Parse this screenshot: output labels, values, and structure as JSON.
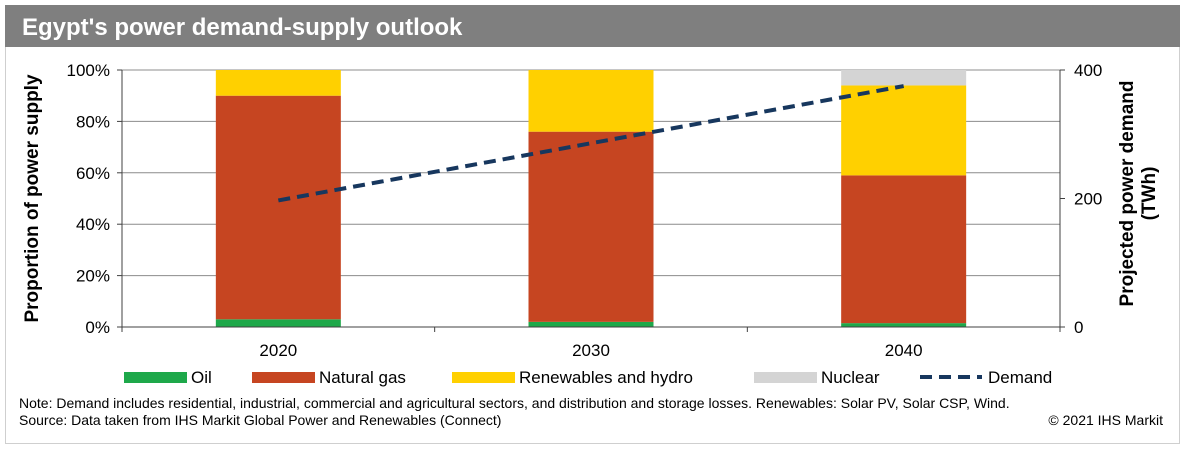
{
  "title": "Egypt's power demand-supply outlook",
  "colors": {
    "oil": "#1ea84a",
    "natural_gas": "#c64521",
    "renewables": "#ffd000",
    "nuclear": "#d4d4d4",
    "demand": "#17375e",
    "title_bar": "#7f7f7f",
    "grid": "#8c8c8c"
  },
  "chart_data": {
    "type": "bar",
    "stacked": true,
    "categories": [
      "2020",
      "2030",
      "2040"
    ],
    "series": [
      {
        "name": "Oil",
        "color_key": "oil",
        "values": [
          3,
          2,
          1.5
        ]
      },
      {
        "name": "Natural gas",
        "color_key": "natural_gas",
        "values": [
          87,
          74,
          57.5
        ]
      },
      {
        "name": "Renewables and hydro",
        "color_key": "renewables",
        "values": [
          10,
          24,
          35
        ]
      },
      {
        "name": "Nuclear",
        "color_key": "nuclear",
        "values": [
          0,
          0,
          6
        ]
      }
    ],
    "line_series": {
      "name": "Demand",
      "color_key": "demand",
      "style": "dashed",
      "axis": "right",
      "x": [
        2020,
        2040
      ],
      "values": [
        197,
        375
      ]
    },
    "ylabel": "Proportion of power supply",
    "y2label_lines": [
      "Projected power demand",
      "(TWh)"
    ],
    "ylim": [
      0,
      100
    ],
    "y2lim": [
      0,
      400
    ],
    "yticks": [
      "0%",
      "20%",
      "40%",
      "60%",
      "80%",
      "100%"
    ],
    "y2ticks": [
      "0",
      "200",
      "400"
    ],
    "legend": [
      "Oil",
      "Natural gas",
      "Renewables and hydro",
      "Nuclear",
      "Demand"
    ],
    "legend_position": "bottom",
    "grid": true
  },
  "notes": {
    "line1": "Note: Demand includes residential, industrial, commercial and agricultural sectors, and distribution and storage losses.  Renewables: Solar PV, Solar CSP, Wind.",
    "line2": "Source: Data taken from IHS Markit Global Power and Renewables (Connect)",
    "copyright": "© 2021 IHS Markit"
  }
}
